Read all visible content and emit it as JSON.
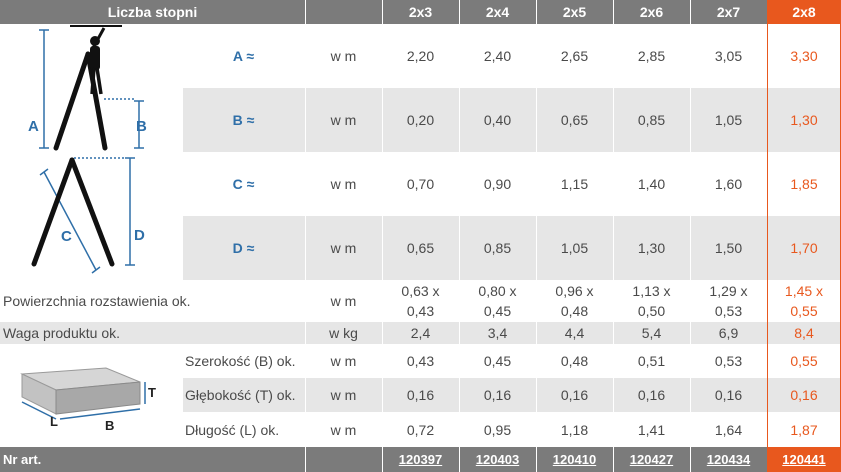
{
  "header": {
    "title": "Liczba stopni",
    "columns": [
      "2x3",
      "2x4",
      "2x5",
      "2x6",
      "2x7",
      "2x8"
    ]
  },
  "dimensions": {
    "rows": [
      {
        "label": "A ≈",
        "unit": "w m",
        "values": [
          "2,20",
          "2,40",
          "2,65",
          "2,85",
          "3,05",
          "3,30"
        ]
      },
      {
        "label": "B ≈",
        "unit": "w m",
        "values": [
          "0,20",
          "0,40",
          "0,65",
          "0,85",
          "1,05",
          "1,30"
        ]
      },
      {
        "label": "C ≈",
        "unit": "w m",
        "values": [
          "0,70",
          "0,90",
          "1,15",
          "1,40",
          "1,60",
          "1,85"
        ]
      },
      {
        "label": "D ≈",
        "unit": "w m",
        "values": [
          "0,65",
          "0,85",
          "1,05",
          "1,30",
          "1,50",
          "1,70"
        ]
      }
    ],
    "diagram_labels": {
      "a": "A",
      "b": "B",
      "c": "C",
      "d": "D"
    }
  },
  "footprint": {
    "label": "Powierzchnia rozstawienia ok.",
    "unit": "w m",
    "values": [
      {
        "top": "0,63 x",
        "bottom": "0,43"
      },
      {
        "top": "0,80 x",
        "bottom": "0,45"
      },
      {
        "top": "0,96 x",
        "bottom": "0,48"
      },
      {
        "top": "1,13 x",
        "bottom": "0,50"
      },
      {
        "top": "1,29 x",
        "bottom": "0,53"
      },
      {
        "top": "1,45 x",
        "bottom": "0,55"
      }
    ]
  },
  "weight": {
    "label": "Waga produktu ok.",
    "unit": "w kg",
    "values": [
      "2,4",
      "3,4",
      "4,4",
      "5,4",
      "6,9",
      "8,4"
    ]
  },
  "package": {
    "diagram_labels": {
      "t": "T",
      "l": "L",
      "b": "B"
    },
    "rows": [
      {
        "label": "Szerokość (B) ok.",
        "unit": "w m",
        "values": [
          "0,43",
          "0,45",
          "0,48",
          "0,51",
          "0,53",
          "0,55"
        ]
      },
      {
        "label": "Głębokość (T) ok.",
        "unit": "w m",
        "values": [
          "0,16",
          "0,16",
          "0,16",
          "0,16",
          "0,16",
          "0,16"
        ]
      },
      {
        "label": "Długość (L) ok.",
        "unit": "w m",
        "values": [
          "0,72",
          "0,95",
          "1,18",
          "1,41",
          "1,64",
          "1,87"
        ]
      }
    ]
  },
  "footer": {
    "label": "Nr art.",
    "articles": [
      "120397",
      "120403",
      "120410",
      "120427",
      "120434",
      "120441"
    ]
  },
  "colors": {
    "header_gray": "#7b7b7b",
    "accent_orange": "#e8581e",
    "row_gray": "#e6e6e6",
    "diagram_blue": "#2f6fa8"
  }
}
